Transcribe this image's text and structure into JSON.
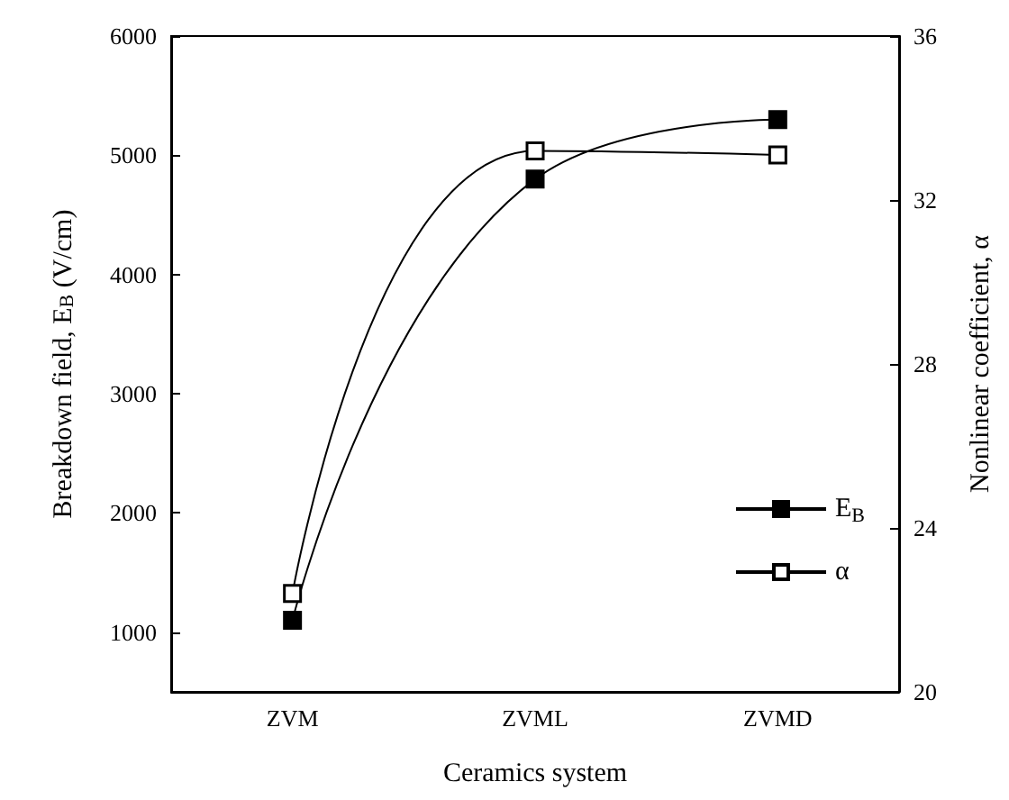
{
  "chart_data": {
    "type": "line",
    "xlabel": "Ceramics system",
    "ylabel": "Breakdown field, E$_{B}$ (V/cm)",
    "y2label": "Nonlinear coefficient, α",
    "categories": [
      "ZVM",
      "ZVML",
      "ZVMD"
    ],
    "series": [
      {
        "name": "E$_{B}$",
        "color": "#000000",
        "values": [
          1100,
          4800,
          5300
        ]
      },
      {
        "name": "α",
        "color": "#000000",
        "axis": "y2",
        "values": [
          22.4,
          33.2,
          33.1
        ]
      }
    ],
    "ylim": [
      500,
      6000
    ],
    "yticks": [
      1000,
      2000,
      3000,
      4000,
      5000,
      6000
    ],
    "y2lim": [
      20,
      36
    ],
    "y2ticks": [
      20,
      24,
      28,
      32,
      36
    ],
    "marker": "square",
    "line_style": "solid",
    "grid": false,
    "legend": "right"
  }
}
